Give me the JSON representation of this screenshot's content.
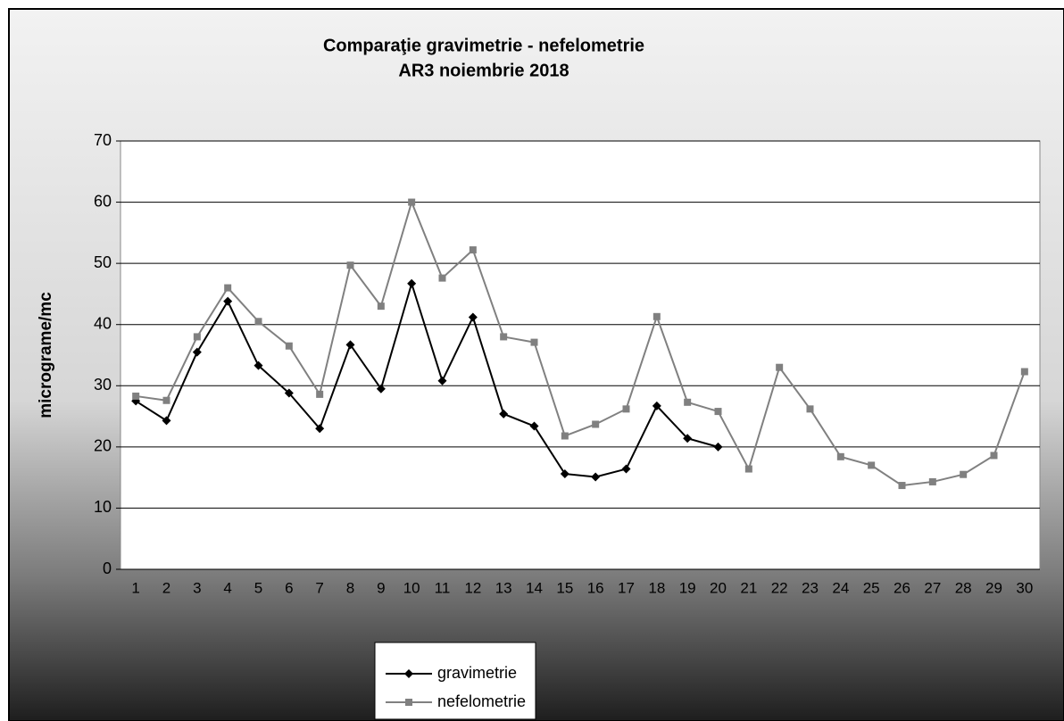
{
  "chart_data": {
    "type": "line",
    "title": "Comparaţie gravimetrie - nefelometrie",
    "subtitle": "AR3 noiembrie 2018",
    "y_label": "micrograme/mc",
    "categories": [
      "1",
      "2",
      "3",
      "4",
      "5",
      "6",
      "7",
      "8",
      "9",
      "10",
      "11",
      "12",
      "13",
      "14",
      "15",
      "16",
      "17",
      "18",
      "19",
      "20",
      "21",
      "22",
      "23",
      "24",
      "25",
      "26",
      "27",
      "28",
      "29",
      "30"
    ],
    "series": [
      {
        "name": "gravimetrie",
        "color": "#000000",
        "marker": "diamond",
        "values": [
          27.5,
          24.3,
          35.5,
          43.8,
          33.3,
          28.8,
          23,
          36.7,
          29.5,
          46.7,
          30.8,
          41.2,
          25.4,
          23.4,
          15.6,
          15.1,
          16.4,
          26.7,
          21.4,
          20.0,
          null,
          null,
          null,
          null,
          null,
          null,
          null,
          null,
          null,
          null
        ]
      },
      {
        "name": "nefelometrie",
        "color": "#808080",
        "marker": "square",
        "values": [
          28.3,
          27.6,
          38,
          46,
          40.5,
          36.5,
          28.6,
          49.7,
          43,
          60,
          47.6,
          52.2,
          38,
          37.1,
          21.8,
          23.7,
          26.2,
          41.3,
          27.3,
          25.8,
          16.4,
          33,
          26.2,
          18.4,
          17,
          13.7,
          14.3,
          15.5,
          18.6,
          32.3
        ]
      }
    ],
    "ylim": [
      0,
      70
    ],
    "yticks": [
      0,
      10,
      20,
      30,
      40,
      50,
      60,
      70
    ],
    "grid": true,
    "legend": "bottom"
  }
}
